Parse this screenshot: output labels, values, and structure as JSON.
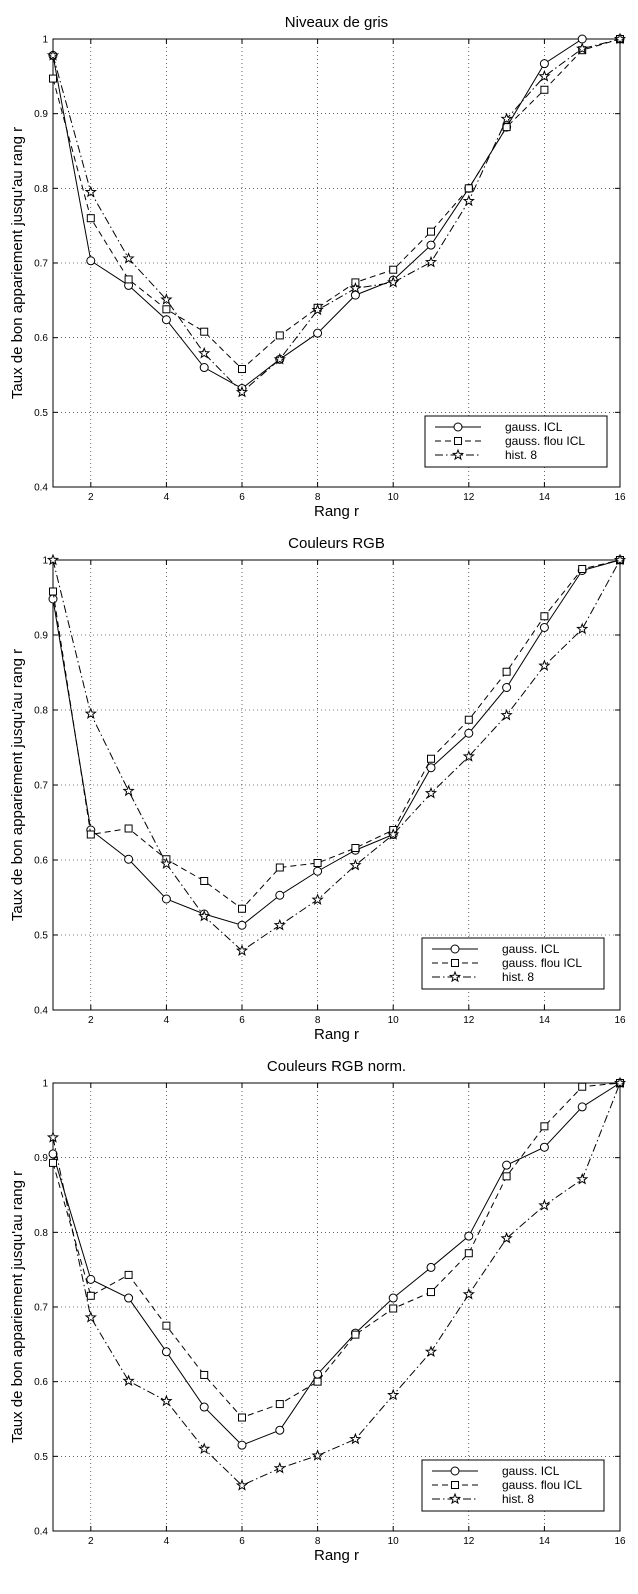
{
  "chart_data": [
    {
      "type": "line",
      "title": "Niveaux de gris",
      "xlabel": "Rang r",
      "ylabel": "Taux de bon appariement jusqu'au rang r",
      "x": [
        1,
        2,
        3,
        4,
        5,
        6,
        7,
        8,
        9,
        10,
        11,
        12,
        13,
        14,
        15,
        16
      ],
      "xlim": [
        1,
        16
      ],
      "ylim": [
        0.4,
        1
      ],
      "xticks": [
        2,
        4,
        6,
        8,
        10,
        12,
        14,
        16
      ],
      "yticks": [
        0.4,
        0.5,
        0.6,
        0.7,
        0.8,
        0.9,
        1
      ],
      "grid": true,
      "legend_position": "bottom-right",
      "series": [
        {
          "name": "gauss. ICL",
          "values": [
            0.978,
            0.703,
            0.67,
            0.624,
            0.56,
            0.532,
            0.571,
            0.606,
            0.657,
            0.677,
            0.724,
            0.8,
            0.882,
            0.967,
            1.0,
            1.0
          ]
        },
        {
          "name": "gauss. flou ICL",
          "values": [
            0.947,
            0.76,
            0.678,
            0.638,
            0.608,
            0.558,
            0.603,
            0.64,
            0.674,
            0.691,
            0.742,
            0.8,
            0.882,
            0.932,
            0.985,
            1.0
          ]
        },
        {
          "name": "hist. 8",
          "values": [
            0.978,
            0.795,
            0.706,
            0.651,
            0.579,
            0.527,
            0.571,
            0.637,
            0.666,
            0.674,
            0.701,
            0.783,
            0.893,
            0.95,
            0.987,
            1.0
          ]
        }
      ]
    },
    {
      "type": "line",
      "title": "Couleurs RGB",
      "xlabel": "Rang r",
      "ylabel": "Taux de bon appariement jusqu'au rang r",
      "x": [
        1,
        2,
        3,
        4,
        5,
        6,
        7,
        8,
        9,
        10,
        11,
        12,
        13,
        14,
        15,
        16
      ],
      "xlim": [
        1,
        16
      ],
      "ylim": [
        0.4,
        1
      ],
      "xticks": [
        2,
        4,
        6,
        8,
        10,
        12,
        14,
        16
      ],
      "yticks": [
        0.4,
        0.5,
        0.6,
        0.7,
        0.8,
        0.9,
        1
      ],
      "grid": true,
      "legend_position": "bottom-right",
      "series": [
        {
          "name": "gauss. ICL",
          "values": [
            0.948,
            0.64,
            0.601,
            0.548,
            0.528,
            0.513,
            0.553,
            0.585,
            0.613,
            0.634,
            0.723,
            0.769,
            0.83,
            0.91,
            0.986,
            1.0
          ]
        },
        {
          "name": "gauss. flou ICL",
          "values": [
            0.958,
            0.634,
            0.642,
            0.601,
            0.572,
            0.535,
            0.59,
            0.596,
            0.616,
            0.64,
            0.735,
            0.787,
            0.851,
            0.925,
            0.988,
            1.0
          ]
        },
        {
          "name": "hist. 8",
          "values": [
            1.0,
            0.795,
            0.692,
            0.595,
            0.525,
            0.479,
            0.513,
            0.547,
            0.593,
            0.634,
            0.689,
            0.738,
            0.793,
            0.859,
            0.908,
            1.0
          ]
        }
      ]
    },
    {
      "type": "line",
      "title": "Couleurs RGB norm.",
      "xlabel": "Rang r",
      "ylabel": "Taux de bon appariement jusqu'au rang r",
      "x": [
        1,
        2,
        3,
        4,
        5,
        6,
        7,
        8,
        9,
        10,
        11,
        12,
        13,
        14,
        15,
        16
      ],
      "xlim": [
        1,
        16
      ],
      "ylim": [
        0.4,
        1
      ],
      "xticks": [
        2,
        4,
        6,
        8,
        10,
        12,
        14,
        16
      ],
      "yticks": [
        0.4,
        0.5,
        0.6,
        0.7,
        0.8,
        0.9,
        1
      ],
      "grid": true,
      "legend_position": "bottom-right",
      "series": [
        {
          "name": "gauss. ICL",
          "values": [
            0.905,
            0.737,
            0.712,
            0.64,
            0.566,
            0.515,
            0.535,
            0.61,
            0.665,
            0.712,
            0.753,
            0.795,
            0.89,
            0.914,
            0.968,
            1.0
          ]
        },
        {
          "name": "gauss. flou ICL",
          "values": [
            0.893,
            0.715,
            0.743,
            0.675,
            0.609,
            0.552,
            0.57,
            0.6,
            0.663,
            0.698,
            0.72,
            0.772,
            0.875,
            0.942,
            0.995,
            1.0
          ]
        },
        {
          "name": "hist. 8",
          "values": [
            0.927,
            0.686,
            0.601,
            0.574,
            0.51,
            0.461,
            0.484,
            0.501,
            0.523,
            0.582,
            0.64,
            0.717,
            0.792,
            0.836,
            0.871,
            1.0
          ]
        }
      ]
    }
  ],
  "legend_styles": [
    {
      "marker": "circle",
      "dash": ""
    },
    {
      "marker": "square",
      "dash": "6,4"
    },
    {
      "marker": "star",
      "dash": "8,3,1.5,3"
    }
  ],
  "colors": {
    "line": "#000000",
    "grid": "#000000",
    "background": "#ffffff"
  }
}
